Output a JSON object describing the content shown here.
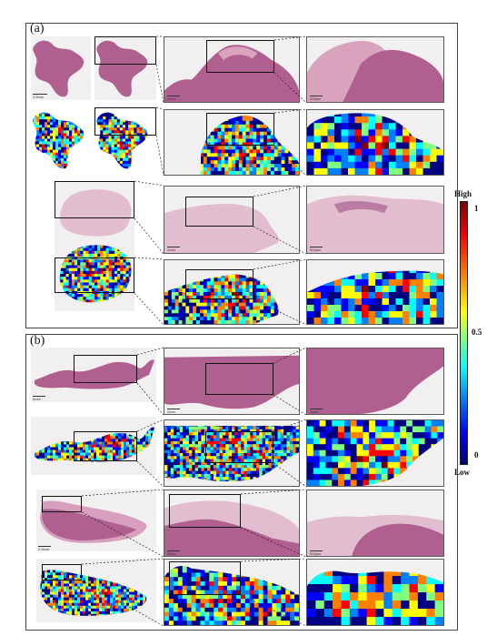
{
  "panel_a_label": "(a)",
  "panel_b_label": "(b)",
  "colorbar": {
    "title_top": "High",
    "title_bottom": "Low",
    "tick_max": "1",
    "tick_mid": "0.5",
    "tick_min": "0"
  },
  "scale_labels": {
    "a_r1_left": "2.5mm",
    "a_r1_mid": "1mm",
    "a_r1_right": "500μm",
    "a_r3_left": "2mm",
    "a_r3_mid": "1mm",
    "a_r3_right": "500μm",
    "b_r1_left": "5mm",
    "b_r1_mid": "2mm",
    "b_r1_right": "1mm",
    "b_r3_left": "2.5mm",
    "b_r3_mid": "2mm",
    "b_r3_right": "500μm"
  },
  "colors": {
    "he_tissue": "#b0608f",
    "he_light": "#dcb3c8",
    "background": "#f1eff0",
    "colormap": [
      "#000080",
      "#0000ff",
      "#0080ff",
      "#00ffff",
      "#80ff80",
      "#ffff00",
      "#ff8000",
      "#ff0000",
      "#800000"
    ]
  }
}
